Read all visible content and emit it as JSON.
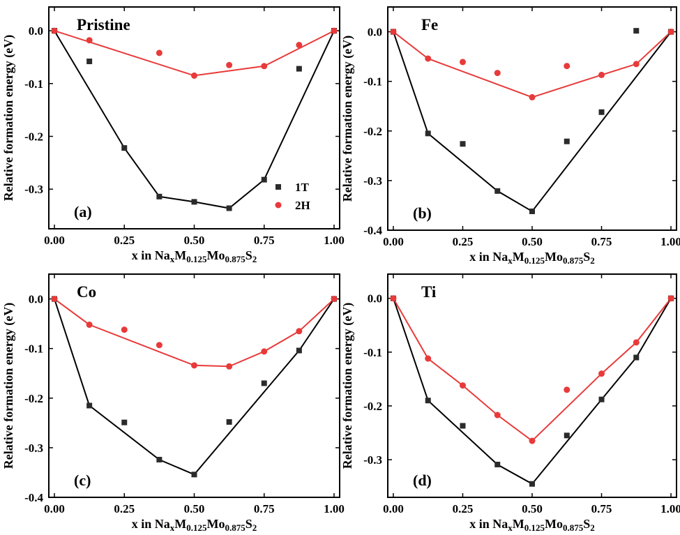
{
  "colors": {
    "1T": "#2b2b2b",
    "2H": "#e83a3a",
    "hull_1T": "#000000",
    "hull_2H": "#e83a3a"
  },
  "chart_data": [
    {
      "type": "scatter",
      "panel_label": "(a)",
      "title": "Pristine",
      "xlabel": {
        "prefix": "x in Na",
        "sub1": "x",
        "mid1": "M",
        "sub2": "0.125",
        "mid2": "Mo",
        "sub3": "0.875",
        "mid3": "S",
        "sub4": "2"
      },
      "ylabel": "Relative formation energy (eV)",
      "xlim": [
        -0.02,
        1.02
      ],
      "ylim": [
        -0.375,
        0.045
      ],
      "xticks": [
        0,
        0.25,
        0.5,
        0.75,
        1
      ],
      "xtick_labels": [
        "0.00",
        "0.25",
        "0.50",
        "0.75",
        "1.00"
      ],
      "yticks": [
        0,
        -0.1,
        -0.2,
        -0.3
      ],
      "ytick_labels": [
        "0.0",
        "-0.1",
        "-0.2",
        "-0.3"
      ],
      "legend": {
        "show": true,
        "position": "bottom-right",
        "entries": [
          "1T",
          "2H"
        ]
      },
      "series": [
        {
          "name": "1T",
          "marker": "square",
          "x": [
            0,
            0.125,
            0.25,
            0.375,
            0.5,
            0.625,
            0.75,
            0.875,
            1
          ],
          "y": [
            0,
            -0.058,
            -0.222,
            -0.314,
            -0.324,
            -0.336,
            -0.282,
            -0.072,
            0
          ],
          "hull_x": [
            0,
            0.25,
            0.375,
            0.5,
            0.625,
            0.75,
            1
          ],
          "hull_y": [
            0,
            -0.222,
            -0.314,
            -0.324,
            -0.336,
            -0.282,
            0
          ]
        },
        {
          "name": "2H",
          "marker": "circle",
          "x": [
            0,
            0.125,
            0.375,
            0.5,
            0.625,
            0.75,
            0.875,
            1
          ],
          "y": [
            0,
            -0.018,
            -0.042,
            -0.085,
            -0.065,
            -0.067,
            -0.027,
            0
          ],
          "hull_x": [
            0,
            0.5,
            0.75,
            1
          ],
          "hull_y": [
            0,
            -0.085,
            -0.067,
            0
          ]
        }
      ]
    },
    {
      "type": "scatter",
      "panel_label": "(b)",
      "title": "Fe",
      "xlabel": {
        "prefix": "x in Na",
        "sub1": "x",
        "mid1": "M",
        "sub2": "0.125",
        "mid2": "Mo",
        "sub3": "0.875",
        "mid3": "S",
        "sub4": "2"
      },
      "ylabel": "Relative formation energy (eV)",
      "xlim": [
        -0.02,
        1.02
      ],
      "ylim": [
        -0.4,
        0.05
      ],
      "xticks": [
        0,
        0.25,
        0.5,
        0.75,
        1
      ],
      "xtick_labels": [
        "0.00",
        "0.25",
        "0.50",
        "0.75",
        "1.00"
      ],
      "yticks": [
        0,
        -0.1,
        -0.2,
        -0.3,
        -0.4
      ],
      "ytick_labels": [
        "0.0",
        "-0.1",
        "-0.2",
        "-0.3",
        "-0.4"
      ],
      "legend": {
        "show": false
      },
      "series": [
        {
          "name": "1T",
          "marker": "square",
          "x": [
            0,
            0.125,
            0.25,
            0.375,
            0.5,
            0.625,
            0.75,
            0.875,
            1
          ],
          "y": [
            0,
            -0.205,
            -0.226,
            -0.321,
            -0.362,
            -0.221,
            -0.162,
            0.002,
            0
          ],
          "hull_x": [
            0,
            0.125,
            0.375,
            0.5,
            1
          ],
          "hull_y": [
            0,
            -0.205,
            -0.321,
            -0.362,
            0
          ]
        },
        {
          "name": "2H",
          "marker": "circle",
          "x": [
            0,
            0.125,
            0.25,
            0.375,
            0.5,
            0.625,
            0.75,
            0.875,
            1
          ],
          "y": [
            0,
            -0.054,
            -0.061,
            -0.083,
            -0.132,
            -0.069,
            -0.087,
            -0.065,
            0
          ],
          "hull_x": [
            0,
            0.125,
            0.5,
            0.75,
            0.875,
            1
          ],
          "hull_y": [
            0,
            -0.054,
            -0.132,
            -0.087,
            -0.065,
            0
          ]
        }
      ]
    },
    {
      "type": "scatter",
      "panel_label": "(c)",
      "title": "Co",
      "xlabel": {
        "prefix": "x in Na",
        "sub1": "x",
        "mid1": "M",
        "sub2": "0.125",
        "mid2": "Mo",
        "sub3": "0.875",
        "mid3": "S",
        "sub4": "2"
      },
      "ylabel": "Relative formation energy (eV)",
      "xlim": [
        -0.02,
        1.02
      ],
      "ylim": [
        -0.4,
        0.05
      ],
      "xticks": [
        0,
        0.25,
        0.5,
        0.75,
        1
      ],
      "xtick_labels": [
        "0.00",
        "0.25",
        "0.50",
        "0.75",
        "1.00"
      ],
      "yticks": [
        0,
        -0.1,
        -0.2,
        -0.3,
        -0.4
      ],
      "ytick_labels": [
        "0.0",
        "-0.1",
        "-0.2",
        "-0.3",
        "-0.4"
      ],
      "legend": {
        "show": false
      },
      "series": [
        {
          "name": "1T",
          "marker": "square",
          "x": [
            0,
            0.125,
            0.25,
            0.375,
            0.5,
            0.625,
            0.75,
            0.875,
            1
          ],
          "y": [
            0,
            -0.215,
            -0.249,
            -0.324,
            -0.354,
            -0.248,
            -0.17,
            -0.104,
            0
          ],
          "hull_x": [
            0,
            0.125,
            0.375,
            0.5,
            0.875,
            1
          ],
          "hull_y": [
            0,
            -0.215,
            -0.324,
            -0.354,
            -0.104,
            0
          ]
        },
        {
          "name": "2H",
          "marker": "circle",
          "x": [
            0,
            0.125,
            0.25,
            0.375,
            0.5,
            0.625,
            0.75,
            0.875,
            1
          ],
          "y": [
            0,
            -0.052,
            -0.062,
            -0.093,
            -0.134,
            -0.136,
            -0.106,
            -0.065,
            0
          ],
          "hull_x": [
            0,
            0.125,
            0.5,
            0.625,
            0.75,
            0.875,
            1
          ],
          "hull_y": [
            0,
            -0.052,
            -0.134,
            -0.136,
            -0.106,
            -0.065,
            0
          ]
        }
      ]
    },
    {
      "type": "scatter",
      "panel_label": "(d)",
      "title": "Ti",
      "xlabel": {
        "prefix": "x in Na",
        "sub1": "x",
        "mid1": "M",
        "sub2": "0.125",
        "mid2": "Mo",
        "sub3": "0.875",
        "mid3": "S",
        "sub4": "2"
      },
      "ylabel": "Relative formation energy (eV)",
      "xlim": [
        -0.02,
        1.02
      ],
      "ylim": [
        -0.37,
        0.045
      ],
      "xticks": [
        0,
        0.25,
        0.5,
        0.75,
        1
      ],
      "xtick_labels": [
        "0.00",
        "0.25",
        "0.50",
        "0.75",
        "1.00"
      ],
      "yticks": [
        0,
        -0.1,
        -0.2,
        -0.3
      ],
      "ytick_labels": [
        "0.0",
        "-0.1",
        "-0.2",
        "-0.3"
      ],
      "legend": {
        "show": false
      },
      "series": [
        {
          "name": "1T",
          "marker": "square",
          "x": [
            0,
            0.125,
            0.25,
            0.375,
            0.5,
            0.625,
            0.75,
            0.875,
            1
          ],
          "y": [
            0,
            -0.19,
            -0.237,
            -0.309,
            -0.345,
            -0.255,
            -0.188,
            -0.11,
            0
          ],
          "hull_x": [
            0,
            0.125,
            0.375,
            0.5,
            0.75,
            0.875,
            1
          ],
          "hull_y": [
            0,
            -0.19,
            -0.309,
            -0.345,
            -0.188,
            -0.11,
            0
          ]
        },
        {
          "name": "2H",
          "marker": "circle",
          "x": [
            0,
            0.125,
            0.25,
            0.375,
            0.5,
            0.625,
            0.75,
            0.875,
            1
          ],
          "y": [
            0,
            -0.112,
            -0.162,
            -0.217,
            -0.265,
            -0.17,
            -0.14,
            -0.082,
            0
          ],
          "hull_x": [
            0,
            0.125,
            0.25,
            0.375,
            0.5,
            0.75,
            0.875,
            1
          ],
          "hull_y": [
            0,
            -0.112,
            -0.162,
            -0.217,
            -0.265,
            -0.14,
            -0.082,
            0
          ]
        }
      ]
    }
  ]
}
